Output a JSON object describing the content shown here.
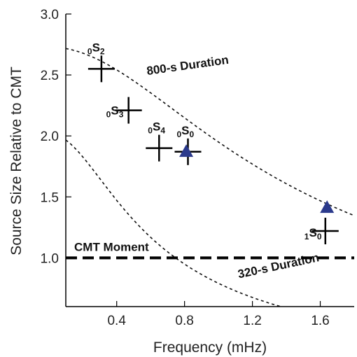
{
  "chart_data": {
    "type": "scatter",
    "title": "",
    "xlabel": "Frequency (mHz)",
    "ylabel": "Source Size Relative to CMT",
    "xlim": [
      0.1,
      1.8
    ],
    "ylim": [
      0.6,
      3.0
    ],
    "xticks": [
      0.4,
      0.8,
      1.2,
      1.6
    ],
    "xtick_labels": [
      "0.4",
      "0.8",
      "1.2",
      "1.6"
    ],
    "yticks": [
      1.0,
      1.5,
      2.0,
      2.5,
      3.0
    ],
    "ytick_labels": [
      "1.0",
      "1.5",
      "2.0",
      "2.5",
      "3.0"
    ],
    "grid": false,
    "series": [
      {
        "marker": "cross",
        "color": "#000000",
        "points": [
          {
            "x": 0.31,
            "y": 2.55,
            "label": "0S2",
            "label_main": "S",
            "label_pre": "0",
            "label_post": "2"
          },
          {
            "x": 0.47,
            "y": 2.21,
            "label": "0S3",
            "label_main": "S",
            "label_pre": "0",
            "label_post": "3"
          },
          {
            "x": 0.65,
            "y": 1.9,
            "label": "0S4",
            "label_main": "S",
            "label_pre": "0",
            "label_post": "4"
          },
          {
            "x": 0.82,
            "y": 1.87,
            "label": "0S0",
            "label_main": "S",
            "label_pre": "0",
            "label_post": "0"
          },
          {
            "x": 1.63,
            "y": 1.22,
            "label": "1S0",
            "label_main": "S",
            "label_pre": "1",
            "label_post": "0"
          }
        ]
      },
      {
        "marker": "triangle",
        "color": "#2b3a8c",
        "points": [
          {
            "x": 0.81,
            "y": 1.88
          },
          {
            "x": 1.64,
            "y": 1.42
          }
        ]
      }
    ],
    "curves": [
      {
        "label": "800-s Duration",
        "y0": 2.73,
        "omega": 0.98
      },
      {
        "label": "320-s Duration",
        "y0": 2.02,
        "omega": 2.35
      }
    ],
    "reference_line": {
      "label": "CMT Moment",
      "y": 1.0
    }
  }
}
